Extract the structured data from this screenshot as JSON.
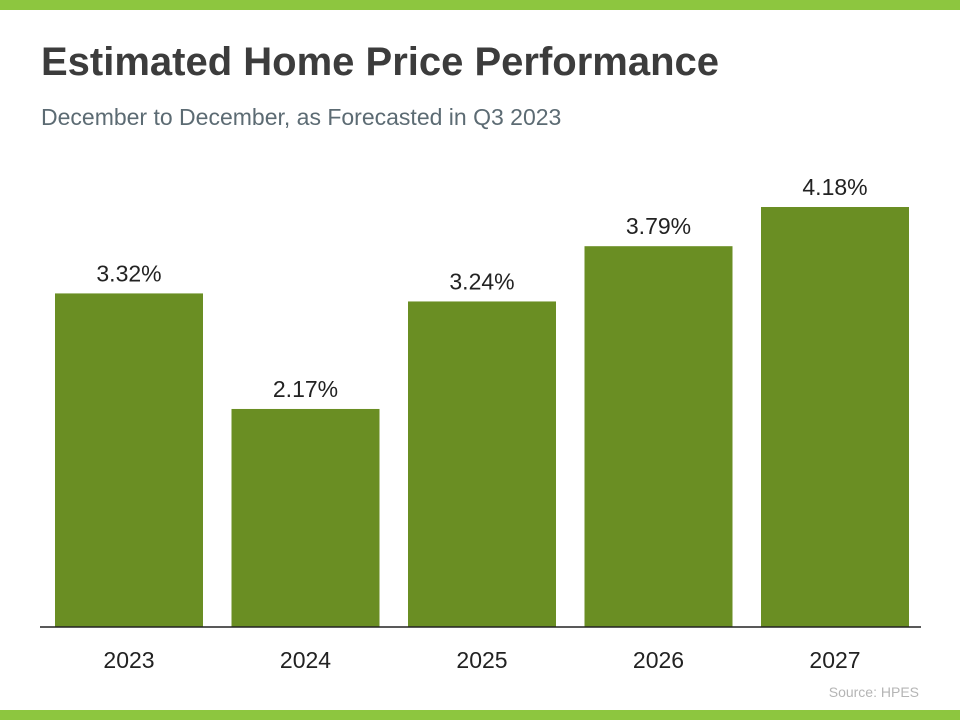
{
  "colors": {
    "accent": "#8dc63f",
    "bar": "#6a8e23",
    "axis": "#222222",
    "text": "#222222"
  },
  "header": {
    "title": "Estimated Home Price Performance",
    "subtitle": "December to December, as Forecasted in Q3 2023"
  },
  "footer": {
    "source": "Source: HPES"
  },
  "chart_data": {
    "type": "bar",
    "title": "Estimated Home Price Performance",
    "subtitle": "December to December, as Forecasted in Q3 2023",
    "categories": [
      "2023",
      "2024",
      "2025",
      "2026",
      "2027"
    ],
    "values": [
      3.32,
      2.17,
      3.24,
      3.79,
      4.18
    ],
    "value_labels": [
      "3.32%",
      "2.17%",
      "3.24%",
      "3.79%",
      "4.18%"
    ],
    "ylim": [
      0,
      4.2
    ],
    "grid": false,
    "legend": "none"
  }
}
